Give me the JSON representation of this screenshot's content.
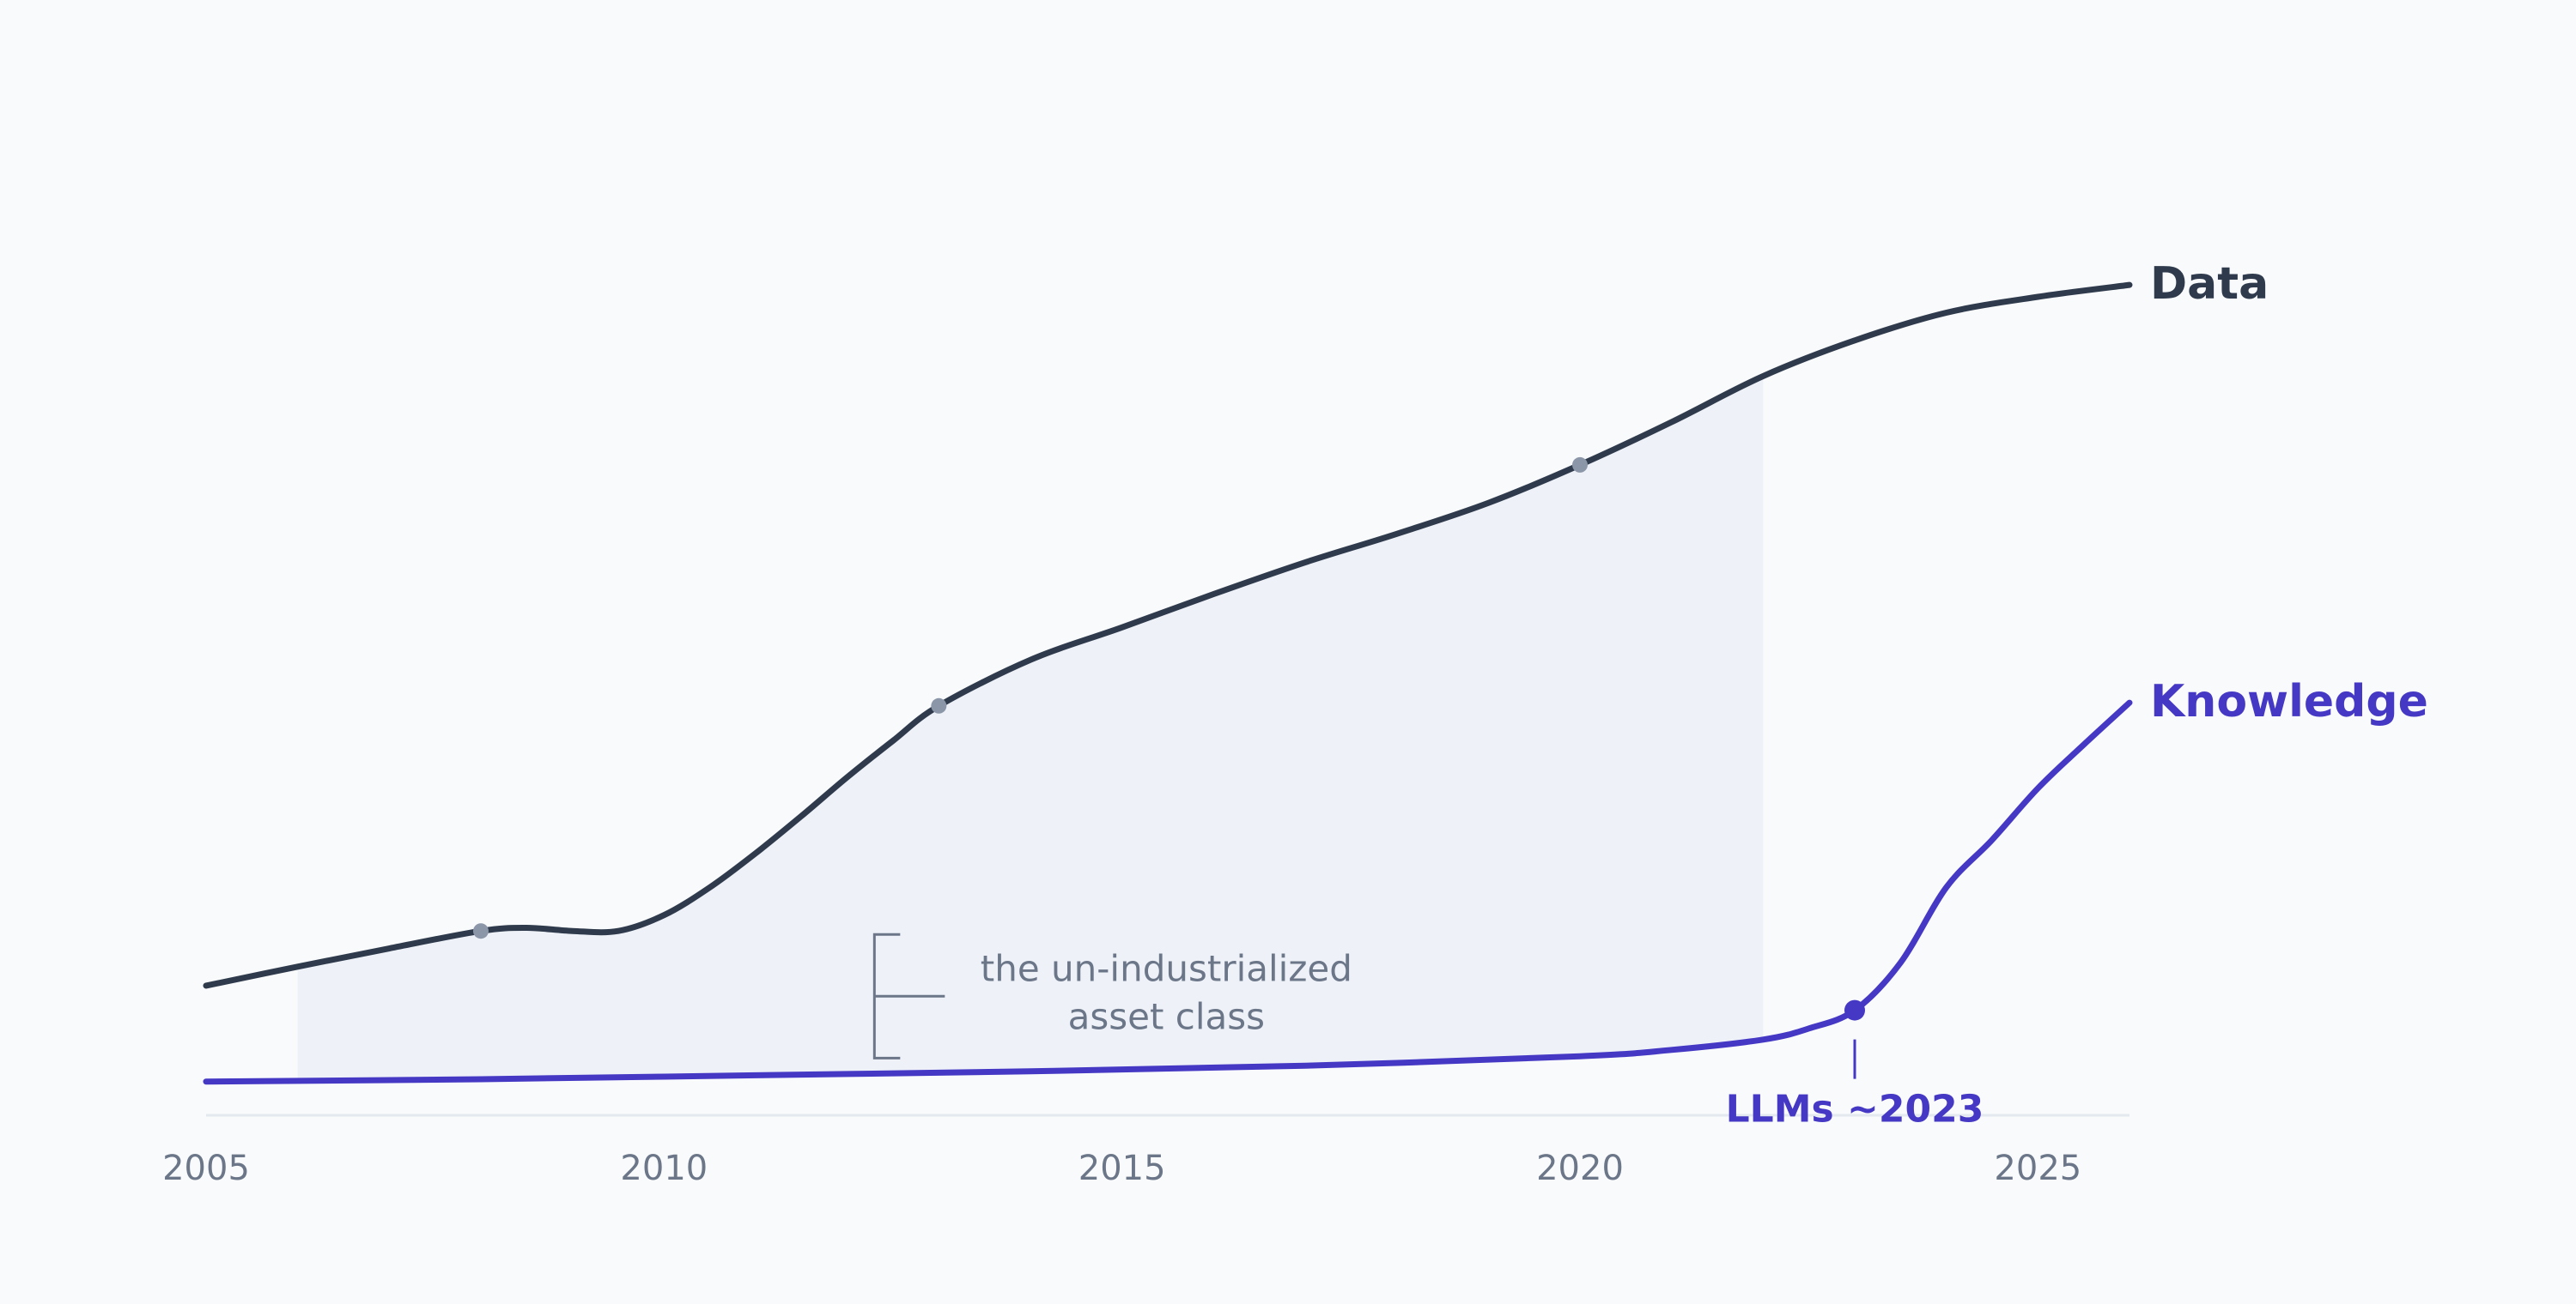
{
  "chart_data": {
    "type": "line",
    "title": "",
    "xlabel": "",
    "ylabel": "",
    "xlim": [
      2005,
      2026
    ],
    "ylim": [
      0,
      100
    ],
    "x_ticks": [
      "2005",
      "2010",
      "2015",
      "2020",
      "2025"
    ],
    "grid": false,
    "legend": "inline-right",
    "colors": {
      "data": "#2f3b4c",
      "knowledge": "#4538c4",
      "fill": "#eef2f8",
      "muted": "#6b7688",
      "marker": "#8b96a8"
    },
    "series": [
      {
        "name": "Data",
        "x": [
          2005,
          2006,
          2007,
          2008,
          2008.5,
          2009,
          2009.5,
          2010,
          2010.5,
          2011,
          2011.5,
          2012,
          2012.5,
          2013,
          2014,
          2015,
          2016,
          2017,
          2018,
          2019,
          2020,
          2021,
          2022,
          2023,
          2024,
          2025,
          2026
        ],
        "y": [
          13.1,
          15.5,
          17.8,
          20.0,
          20.4,
          20.0,
          20.0,
          22.0,
          25.5,
          29.8,
          34.5,
          39.4,
          44.0,
          48.4,
          54.2,
          58.3,
          62.5,
          66.5,
          70.1,
          74.0,
          78.8,
          84.2,
          90.0,
          94.5,
          98.0,
          100.0,
          101.5
        ]
      },
      {
        "name": "Knowledge",
        "x": [
          2005,
          2008,
          2011,
          2014,
          2017,
          2020,
          2021,
          2022,
          2022.5,
          2023,
          2023.5,
          2024,
          2024.5,
          2025,
          2025.5,
          2026
        ],
        "y": [
          1.0,
          1.3,
          1.8,
          2.3,
          3.0,
          4.2,
          5.0,
          6.3,
          7.7,
          10.0,
          16.0,
          25.5,
          31.5,
          38.0,
          43.5,
          48.8
        ]
      }
    ],
    "markers": [
      {
        "series": "Data",
        "x": 2008,
        "y": 20.0
      },
      {
        "series": "Data",
        "x": 2013,
        "y": 48.4
      },
      {
        "series": "Data",
        "x": 2020,
        "y": 78.8
      }
    ],
    "shaded_region": {
      "between": [
        "Knowledge",
        "Data"
      ],
      "x_from": 2006,
      "x_to": 2022
    },
    "annotations": [
      {
        "kind": "bracket",
        "x": 2010,
        "y_from": 1.8,
        "y_to": 20.0,
        "text": [
          "the un-industrialized",
          "asset class"
        ]
      },
      {
        "kind": "callout",
        "x": 2023,
        "y": 10.0,
        "text": "LLMs ~2023"
      }
    ]
  }
}
